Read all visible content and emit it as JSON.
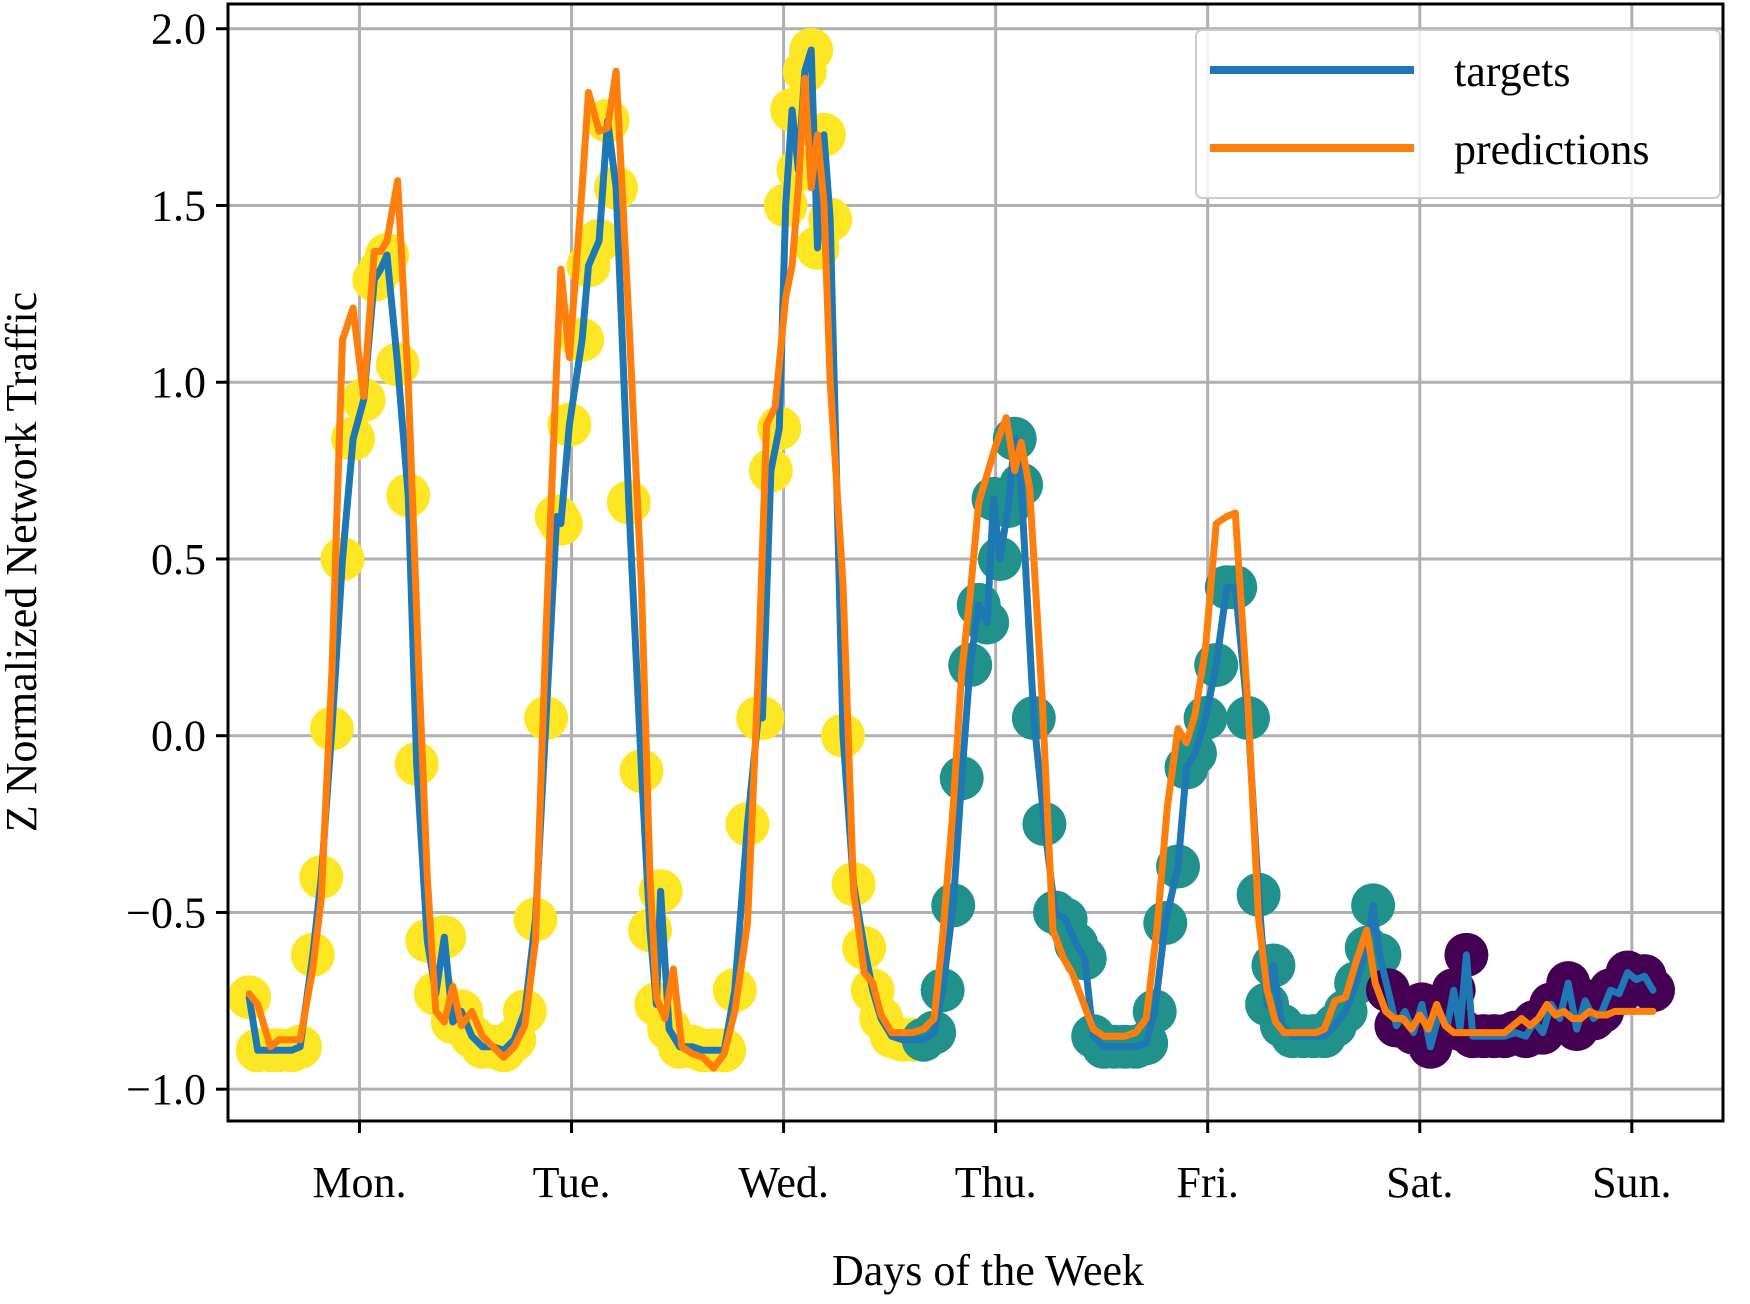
{
  "chart_data": {
    "type": "line",
    "title": "",
    "xlabel": "Days of the Week",
    "ylabel": "Z Normalized Network Traffic",
    "xlim": [
      -0.62,
      6.43
    ],
    "ylim": [
      -1.09,
      2.07
    ],
    "grid": true,
    "x_ticks": [
      0,
      1,
      2,
      3,
      4,
      5,
      6
    ],
    "x_tick_labels": [
      "Mon.",
      "Tue.",
      "Wed.",
      "Thu.",
      "Fri.",
      "Sat.",
      "Sun."
    ],
    "y_ticks": [
      2.0,
      1.5,
      1.0,
      0.5,
      0.0,
      -0.5,
      -1.0
    ],
    "y_tick_labels": [
      "2.0",
      "1.5",
      "1.0",
      "0.5",
      "0.0",
      "−0.5",
      "−1.0"
    ],
    "legend": {
      "position": "top-right",
      "entries": [
        {
          "label": "targets",
          "color": "#1f77b4"
        },
        {
          "label": "predictions",
          "color": "#ff7f0e"
        }
      ]
    },
    "scatter_classes": {
      "high": "#fde725",
      "medium": "#21918c",
      "low": "#440154"
    },
    "series": [
      {
        "name": "targets",
        "color": "#1f77b4",
        "points": [
          [
            -0.52,
            -0.74
          ],
          [
            -0.48,
            -0.89
          ],
          [
            -0.42,
            -0.89
          ],
          [
            -0.38,
            -0.89
          ],
          [
            -0.32,
            -0.89
          ],
          [
            -0.28,
            -0.88
          ],
          [
            -0.22,
            -0.62
          ],
          [
            -0.18,
            -0.4
          ],
          [
            -0.13,
            0.02
          ],
          [
            -0.08,
            0.5
          ],
          [
            -0.03,
            0.84
          ],
          [
            0.02,
            0.95
          ],
          [
            0.07,
            1.29
          ],
          [
            0.1,
            1.32
          ],
          [
            0.13,
            1.36
          ],
          [
            0.18,
            1.05
          ],
          [
            0.23,
            0.68
          ],
          [
            0.27,
            -0.08
          ],
          [
            0.32,
            -0.58
          ],
          [
            0.36,
            -0.73
          ],
          [
            0.4,
            -0.57
          ],
          [
            0.44,
            -0.81
          ],
          [
            0.48,
            -0.78
          ],
          [
            0.53,
            -0.85
          ],
          [
            0.58,
            -0.88
          ],
          [
            0.63,
            -0.88
          ],
          [
            0.68,
            -0.89
          ],
          [
            0.73,
            -0.86
          ],
          [
            0.78,
            -0.78
          ],
          [
            0.83,
            -0.52
          ],
          [
            0.88,
            0.05
          ],
          [
            0.93,
            0.62
          ],
          [
            0.95,
            0.6
          ],
          [
            0.99,
            0.88
          ],
          [
            1.05,
            1.12
          ],
          [
            1.08,
            1.33
          ],
          [
            1.13,
            1.4
          ],
          [
            1.17,
            1.74
          ],
          [
            1.21,
            1.55
          ],
          [
            1.27,
            0.66
          ],
          [
            1.33,
            -0.1
          ],
          [
            1.37,
            -0.55
          ],
          [
            1.4,
            -0.76
          ],
          [
            1.42,
            -0.44
          ],
          [
            1.46,
            -0.83
          ],
          [
            1.51,
            -0.88
          ],
          [
            1.57,
            -0.88
          ],
          [
            1.62,
            -0.89
          ],
          [
            1.67,
            -0.89
          ],
          [
            1.72,
            -0.89
          ],
          [
            1.77,
            -0.72
          ],
          [
            1.83,
            -0.25
          ],
          [
            1.88,
            0.05
          ],
          [
            1.9,
            0.05
          ],
          [
            1.94,
            0.75
          ],
          [
            1.98,
            0.87
          ],
          [
            2.01,
            1.5
          ],
          [
            2.04,
            1.77
          ],
          [
            2.07,
            1.6
          ],
          [
            2.1,
            1.88
          ],
          [
            2.13,
            1.94
          ],
          [
            2.16,
            1.38
          ],
          [
            2.19,
            1.7
          ],
          [
            2.22,
            1.46
          ],
          [
            2.28,
            0.0
          ],
          [
            2.33,
            -0.42
          ],
          [
            2.38,
            -0.6
          ],
          [
            2.42,
            -0.72
          ],
          [
            2.46,
            -0.8
          ],
          [
            2.51,
            -0.85
          ],
          [
            2.56,
            -0.86
          ],
          [
            2.61,
            -0.86
          ],
          [
            2.66,
            -0.86
          ],
          [
            2.71,
            -0.84
          ],
          [
            2.75,
            -0.72
          ],
          [
            2.8,
            -0.48
          ],
          [
            2.84,
            -0.12
          ],
          [
            2.88,
            0.2
          ],
          [
            2.92,
            0.37
          ],
          [
            2.96,
            0.32
          ],
          [
            2.99,
            0.67
          ],
          [
            3.02,
            0.5
          ],
          [
            3.06,
            0.65
          ],
          [
            3.09,
            0.84
          ],
          [
            3.12,
            0.71
          ],
          [
            3.18,
            0.05
          ],
          [
            3.23,
            -0.25
          ],
          [
            3.28,
            -0.5
          ],
          [
            3.33,
            -0.52
          ],
          [
            3.38,
            -0.59
          ],
          [
            3.42,
            -0.63
          ],
          [
            3.46,
            -0.85
          ],
          [
            3.51,
            -0.88
          ],
          [
            3.56,
            -0.88
          ],
          [
            3.61,
            -0.88
          ],
          [
            3.66,
            -0.88
          ],
          [
            3.71,
            -0.87
          ],
          [
            3.75,
            -0.78
          ],
          [
            3.8,
            -0.53
          ],
          [
            3.86,
            -0.37
          ],
          [
            3.9,
            -0.09
          ],
          [
            3.94,
            -0.05
          ],
          [
            3.99,
            0.05
          ],
          [
            4.04,
            0.2
          ],
          [
            4.09,
            0.42
          ],
          [
            4.13,
            0.42
          ],
          [
            4.19,
            0.05
          ],
          [
            4.24,
            -0.45
          ],
          [
            4.28,
            -0.76
          ],
          [
            4.31,
            -0.65
          ],
          [
            4.35,
            -0.82
          ],
          [
            4.4,
            -0.85
          ],
          [
            4.45,
            -0.85
          ],
          [
            4.5,
            -0.85
          ],
          [
            4.55,
            -0.85
          ],
          [
            4.6,
            -0.82
          ],
          [
            4.65,
            -0.78
          ],
          [
            4.7,
            -0.7
          ],
          [
            4.75,
            -0.6
          ],
          [
            4.78,
            -0.48
          ],
          [
            4.81,
            -0.62
          ],
          [
            4.85,
            -0.72
          ],
          [
            4.89,
            -0.82
          ],
          [
            4.93,
            -0.78
          ],
          [
            4.97,
            -0.84
          ],
          [
            5.01,
            -0.76
          ],
          [
            5.05,
            -0.88
          ],
          [
            5.09,
            -0.79
          ],
          [
            5.13,
            -0.82
          ],
          [
            5.16,
            -0.72
          ],
          [
            5.19,
            -0.83
          ],
          [
            5.22,
            -0.62
          ],
          [
            5.25,
            -0.85
          ],
          [
            5.3,
            -0.85
          ],
          [
            5.35,
            -0.85
          ],
          [
            5.4,
            -0.85
          ],
          [
            5.45,
            -0.84
          ],
          [
            5.5,
            -0.85
          ],
          [
            5.54,
            -0.81
          ],
          [
            5.58,
            -0.84
          ],
          [
            5.62,
            -0.76
          ],
          [
            5.66,
            -0.8
          ],
          [
            5.7,
            -0.7
          ],
          [
            5.74,
            -0.83
          ],
          [
            5.78,
            -0.75
          ],
          [
            5.82,
            -0.8
          ],
          [
            5.86,
            -0.78
          ],
          [
            5.9,
            -0.72
          ],
          [
            5.94,
            -0.73
          ],
          [
            5.98,
            -0.67
          ],
          [
            6.02,
            -0.69
          ],
          [
            6.06,
            -0.68
          ],
          [
            6.1,
            -0.72
          ]
        ]
      },
      {
        "name": "predictions",
        "color": "#ff7f0e",
        "points": [
          [
            -0.52,
            -0.73
          ],
          [
            -0.48,
            -0.76
          ],
          [
            -0.42,
            -0.88
          ],
          [
            -0.38,
            -0.86
          ],
          [
            -0.32,
            -0.86
          ],
          [
            -0.28,
            -0.86
          ],
          [
            -0.22,
            -0.66
          ],
          [
            -0.18,
            -0.46
          ],
          [
            -0.13,
            0.18
          ],
          [
            -0.08,
            1.12
          ],
          [
            -0.03,
            1.21
          ],
          [
            0.02,
            0.96
          ],
          [
            0.07,
            1.37
          ],
          [
            0.1,
            1.37
          ],
          [
            0.13,
            1.4
          ],
          [
            0.18,
            1.57
          ],
          [
            0.23,
            1.0
          ],
          [
            0.28,
            0.18
          ],
          [
            0.32,
            -0.4
          ],
          [
            0.36,
            -0.78
          ],
          [
            0.4,
            -0.81
          ],
          [
            0.44,
            -0.71
          ],
          [
            0.48,
            -0.82
          ],
          [
            0.53,
            -0.78
          ],
          [
            0.58,
            -0.85
          ],
          [
            0.63,
            -0.88
          ],
          [
            0.68,
            -0.91
          ],
          [
            0.73,
            -0.88
          ],
          [
            0.78,
            -0.82
          ],
          [
            0.83,
            -0.58
          ],
          [
            0.88,
            0.3
          ],
          [
            0.93,
            1.05
          ],
          [
            0.95,
            1.32
          ],
          [
            0.99,
            1.07
          ],
          [
            1.05,
            1.55
          ],
          [
            1.08,
            1.82
          ],
          [
            1.13,
            1.71
          ],
          [
            1.17,
            1.72
          ],
          [
            1.21,
            1.88
          ],
          [
            1.27,
            1.18
          ],
          [
            1.33,
            0.42
          ],
          [
            1.37,
            -0.4
          ],
          [
            1.4,
            -0.74
          ],
          [
            1.44,
            -0.8
          ],
          [
            1.48,
            -0.66
          ],
          [
            1.52,
            -0.88
          ],
          [
            1.57,
            -0.9
          ],
          [
            1.62,
            -0.91
          ],
          [
            1.67,
            -0.94
          ],
          [
            1.72,
            -0.9
          ],
          [
            1.77,
            -0.78
          ],
          [
            1.83,
            -0.53
          ],
          [
            1.88,
            0.16
          ],
          [
            1.92,
            0.88
          ],
          [
            1.96,
            0.93
          ],
          [
            2.01,
            1.24
          ],
          [
            2.04,
            1.33
          ],
          [
            2.07,
            1.55
          ],
          [
            2.1,
            1.86
          ],
          [
            2.13,
            1.55
          ],
          [
            2.16,
            1.7
          ],
          [
            2.19,
            1.51
          ],
          [
            2.22,
            1.0
          ],
          [
            2.28,
            0.43
          ],
          [
            2.33,
            -0.44
          ],
          [
            2.38,
            -0.67
          ],
          [
            2.42,
            -0.7
          ],
          [
            2.46,
            -0.79
          ],
          [
            2.51,
            -0.84
          ],
          [
            2.56,
            -0.84
          ],
          [
            2.61,
            -0.84
          ],
          [
            2.66,
            -0.83
          ],
          [
            2.71,
            -0.8
          ],
          [
            2.75,
            -0.57
          ],
          [
            2.8,
            -0.2
          ],
          [
            2.84,
            0.18
          ],
          [
            2.88,
            0.4
          ],
          [
            2.92,
            0.66
          ],
          [
            2.96,
            0.74
          ],
          [
            3.0,
            0.82
          ],
          [
            3.05,
            0.9
          ],
          [
            3.09,
            0.75
          ],
          [
            3.12,
            0.83
          ],
          [
            3.16,
            0.7
          ],
          [
            3.22,
            0.1
          ],
          [
            3.27,
            -0.55
          ],
          [
            3.32,
            -0.63
          ],
          [
            3.36,
            -0.67
          ],
          [
            3.41,
            -0.75
          ],
          [
            3.46,
            -0.83
          ],
          [
            3.51,
            -0.85
          ],
          [
            3.56,
            -0.85
          ],
          [
            3.61,
            -0.85
          ],
          [
            3.66,
            -0.84
          ],
          [
            3.71,
            -0.8
          ],
          [
            3.76,
            -0.55
          ],
          [
            3.81,
            -0.2
          ],
          [
            3.86,
            0.02
          ],
          [
            3.9,
            -0.02
          ],
          [
            3.94,
            0.06
          ],
          [
            3.99,
            0.25
          ],
          [
            4.04,
            0.6
          ],
          [
            4.09,
            0.62
          ],
          [
            4.13,
            0.63
          ],
          [
            4.19,
            0.08
          ],
          [
            4.24,
            -0.52
          ],
          [
            4.28,
            -0.72
          ],
          [
            4.32,
            -0.81
          ],
          [
            4.36,
            -0.84
          ],
          [
            4.41,
            -0.84
          ],
          [
            4.46,
            -0.84
          ],
          [
            4.51,
            -0.84
          ],
          [
            4.55,
            -0.83
          ],
          [
            4.6,
            -0.75
          ],
          [
            4.65,
            -0.74
          ],
          [
            4.7,
            -0.64
          ],
          [
            4.75,
            -0.55
          ],
          [
            4.79,
            -0.7
          ],
          [
            4.84,
            -0.78
          ],
          [
            4.88,
            -0.8
          ],
          [
            4.92,
            -0.8
          ],
          [
            4.96,
            -0.83
          ],
          [
            5.0,
            -0.79
          ],
          [
            5.04,
            -0.83
          ],
          [
            5.08,
            -0.76
          ],
          [
            5.12,
            -0.82
          ],
          [
            5.16,
            -0.84
          ],
          [
            5.2,
            -0.84
          ],
          [
            5.24,
            -0.84
          ],
          [
            5.3,
            -0.84
          ],
          [
            5.35,
            -0.84
          ],
          [
            5.4,
            -0.84
          ],
          [
            5.44,
            -0.82
          ],
          [
            5.48,
            -0.8
          ],
          [
            5.52,
            -0.82
          ],
          [
            5.56,
            -0.8
          ],
          [
            5.6,
            -0.76
          ],
          [
            5.64,
            -0.79
          ],
          [
            5.68,
            -0.78
          ],
          [
            5.72,
            -0.8
          ],
          [
            5.76,
            -0.8
          ],
          [
            5.8,
            -0.78
          ],
          [
            5.84,
            -0.79
          ],
          [
            5.88,
            -0.79
          ],
          [
            5.92,
            -0.78
          ],
          [
            5.96,
            -0.78
          ],
          [
            6.0,
            -0.78
          ],
          [
            6.06,
            -0.78
          ],
          [
            6.1,
            -0.78
          ]
        ]
      }
    ]
  }
}
